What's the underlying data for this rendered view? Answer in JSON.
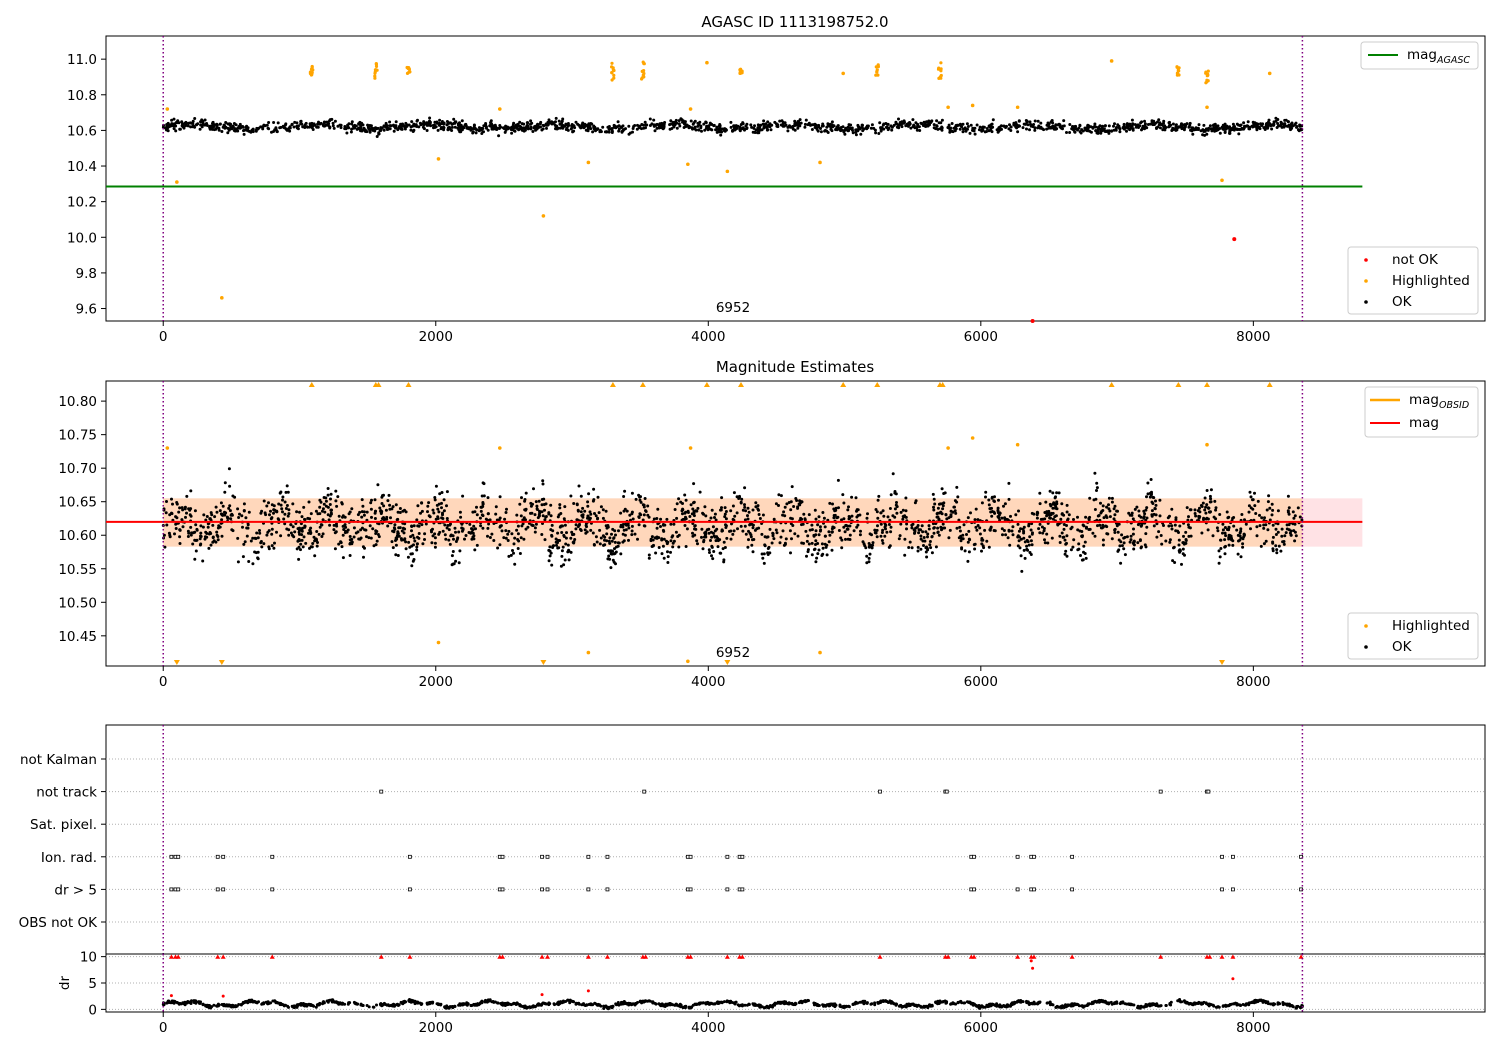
{
  "chart_data": [
    {
      "type": "scatter",
      "title": "AGASC ID 1113198752.0",
      "xlim": [
        -420,
        9700
      ],
      "ylim": [
        9.53,
        11.13
      ],
      "xticks": [
        "0",
        "2000",
        "4000",
        "6000",
        "8000"
      ],
      "xtick_values": [
        0,
        2000,
        4000,
        6000,
        8000
      ],
      "yticks": [
        "9.6",
        "9.8",
        "10.0",
        "10.2",
        "10.4",
        "10.6",
        "10.8",
        "11.0"
      ],
      "ytick_values": [
        9.6,
        9.8,
        10.0,
        10.2,
        10.4,
        10.6,
        10.8,
        11.0
      ],
      "vlines": [
        0,
        8360
      ],
      "hline": {
        "y": 10.285,
        "x": [
          -420,
          8800
        ],
        "color": "#008000"
      },
      "annotation": {
        "text": "6952",
        "x": 4200,
        "y": 9.56
      },
      "ok_band": {
        "center": 10.62,
        "spread": 0.035,
        "x": [
          0,
          8360
        ]
      },
      "highlighted_clusters": [
        {
          "x": 1090,
          "y": [
            10.91,
            10.96
          ]
        },
        {
          "x": 1560,
          "y": [
            10.88,
            10.98
          ]
        },
        {
          "x": 1800,
          "y": [
            10.89,
            10.97
          ]
        },
        {
          "x": 3300,
          "y": [
            10.88,
            10.98
          ]
        },
        {
          "x": 3520,
          "y": [
            10.88,
            10.99
          ]
        },
        {
          "x": 4240,
          "y": [
            10.92,
            10.95
          ]
        },
        {
          "x": 5240,
          "y": [
            10.91,
            10.98
          ]
        },
        {
          "x": 5700,
          "y": [
            10.89,
            10.98
          ]
        },
        {
          "x": 7450,
          "y": [
            10.91,
            10.96
          ]
        },
        {
          "x": 7660,
          "y": [
            10.86,
            10.96
          ]
        }
      ],
      "highlighted_points": [
        [
          30,
          10.72
        ],
        [
          100,
          10.31
        ],
        [
          430,
          9.66
        ],
        [
          2020,
          10.44
        ],
        [
          2470,
          10.72
        ],
        [
          2790,
          10.12
        ],
        [
          3120,
          10.42
        ],
        [
          3850,
          10.41
        ],
        [
          3870,
          10.72
        ],
        [
          3990,
          10.98
        ],
        [
          4140,
          10.37
        ],
        [
          4820,
          10.42
        ],
        [
          4990,
          10.92
        ],
        [
          5760,
          10.73
        ],
        [
          5940,
          10.74
        ],
        [
          6270,
          10.73
        ],
        [
          6960,
          10.99
        ],
        [
          7660,
          10.73
        ],
        [
          7770,
          10.32
        ],
        [
          8120,
          10.92
        ]
      ],
      "not_ok_points": [
        [
          7860,
          9.99
        ],
        [
          6380,
          9.52
        ]
      ],
      "legend_top": [
        {
          "label": "mag",
          "sub": "AGASC",
          "color": "#008000"
        }
      ],
      "legend_bottom": [
        {
          "label": "not OK",
          "color": "#ff0000"
        },
        {
          "label": "Highlighted",
          "color": "#ffa500"
        },
        {
          "label": "OK",
          "color": "#000000"
        }
      ]
    },
    {
      "type": "scatter",
      "title": "Magnitude Estimates",
      "xlim": [
        -420,
        9700
      ],
      "ylim": [
        10.405,
        10.83
      ],
      "xticks": [
        "0",
        "2000",
        "4000",
        "6000",
        "8000"
      ],
      "xtick_values": [
        0,
        2000,
        4000,
        6000,
        8000
      ],
      "yticks": [
        "10.45",
        "10.50",
        "10.55",
        "10.60",
        "10.65",
        "10.70",
        "10.75",
        "10.80"
      ],
      "ytick_values": [
        10.45,
        10.5,
        10.55,
        10.6,
        10.65,
        10.7,
        10.75,
        10.8
      ],
      "vlines": [
        0,
        8360
      ],
      "mag_line": {
        "y": 10.62,
        "x": [
          -420,
          8800
        ],
        "color": "#ff0000"
      },
      "mag_band": {
        "y": [
          10.583,
          10.655
        ],
        "x": [
          -420,
          8800
        ]
      },
      "annotation": {
        "text": "6952",
        "x": 4200,
        "y": 10.415
      },
      "ok_band": {
        "center": 10.615,
        "spread": 0.04,
        "x": [
          0,
          8360
        ]
      },
      "up_markers": [
        1090,
        1560,
        1580,
        1800,
        3300,
        3520,
        3990,
        4240,
        4990,
        5240,
        5700,
        5720,
        6960,
        7450,
        7660,
        8120
      ],
      "down_markers": [
        100,
        430,
        2790,
        4140,
        7770
      ],
      "highlighted_points": [
        [
          30,
          10.73
        ],
        [
          2470,
          10.73
        ],
        [
          3870,
          10.73
        ],
        [
          5760,
          10.73
        ],
        [
          5940,
          10.745
        ],
        [
          6270,
          10.735
        ],
        [
          7660,
          10.735
        ],
        [
          2020,
          10.44
        ],
        [
          3120,
          10.425
        ],
        [
          4820,
          10.425
        ],
        [
          3850,
          10.412
        ]
      ],
      "legend_top": [
        {
          "label": "mag",
          "sub": "OBSID",
          "color": "#ffa500"
        },
        {
          "label": "mag",
          "sub": "",
          "color": "#ff0000"
        }
      ],
      "legend_bottom": [
        {
          "label": "Highlighted",
          "color": "#ffa500"
        },
        {
          "label": "OK",
          "color": "#000000"
        }
      ]
    },
    {
      "type": "scatter",
      "xlim": [
        -420,
        9700
      ],
      "categories": [
        "not Kalman",
        "not track",
        "Sat. pixel.",
        "Ion. rad.",
        "dr > 5",
        "OBS not OK"
      ],
      "flags": {
        "not track": [
          1600,
          3530,
          5260,
          5740,
          5750,
          7320,
          7660,
          7670
        ],
        "Ion. rad.": [
          60,
          90,
          110,
          400,
          440,
          800,
          1810,
          2470,
          2490,
          2780,
          2820,
          3120,
          3260,
          3850,
          3870,
          4140,
          4230,
          4250,
          5930,
          5950,
          6270,
          6370,
          6390,
          6670,
          7770,
          7850,
          8350
        ],
        "dr > 5": [
          60,
          90,
          110,
          400,
          440,
          800,
          1810,
          2470,
          2490,
          2780,
          2820,
          3120,
          3260,
          3850,
          3870,
          4140,
          4230,
          4250,
          5930,
          5950,
          6270,
          6370,
          6390,
          6670,
          7770,
          7850,
          8350
        ]
      }
    },
    {
      "type": "scatter",
      "xlim": [
        -420,
        9700
      ],
      "ylim": [
        -0.5,
        10.5
      ],
      "ylabel": "dr",
      "yticks": [
        "0",
        "5",
        "10"
      ],
      "ytick_values": [
        0,
        5,
        10
      ],
      "xticks": [
        "0",
        "2000",
        "4000",
        "6000",
        "8000"
      ],
      "xtick_values": [
        0,
        2000,
        4000,
        6000,
        8000
      ],
      "vlines": [
        0,
        8360
      ],
      "clipped_x": [
        60,
        90,
        110,
        400,
        440,
        800,
        1600,
        1810,
        2470,
        2490,
        2780,
        2820,
        3120,
        3260,
        3520,
        3540,
        3850,
        3870,
        4140,
        4230,
        4250,
        5260,
        5740,
        5760,
        5930,
        5950,
        6270,
        6370,
        6390,
        6670,
        7320,
        7660,
        7680,
        7770,
        7850,
        8350
      ],
      "red_points": [
        [
          6370,
          9.2
        ],
        [
          6380,
          7.8
        ],
        [
          7850,
          5.8
        ],
        [
          3120,
          3.5
        ],
        [
          2780,
          2.8
        ],
        [
          60,
          2.6
        ],
        [
          440,
          2.5
        ]
      ]
    }
  ]
}
